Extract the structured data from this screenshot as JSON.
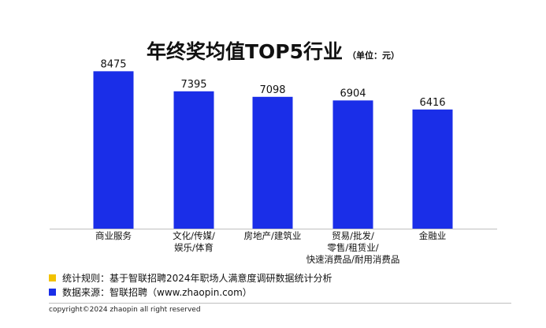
{
  "title": "年终奖均值TOP5行业",
  "unit_label": "（单位：元）",
  "chart_data": {
    "type": "bar",
    "title": "年终奖均值TOP5行业",
    "unit": "元",
    "categories": [
      [
        "商业服务"
      ],
      [
        "文化/传媒/",
        "娱乐/体育"
      ],
      [
        "房地产/建筑业"
      ],
      [
        "贸易/批发/",
        "零售/租赁业/",
        "快速消费品/耐用消费品"
      ],
      [
        "金融业"
      ]
    ],
    "values": [
      8475,
      7395,
      7098,
      6904,
      6416
    ],
    "ylim": [
      0,
      9000
    ],
    "bar_color": "#1a2ee8",
    "grid": false,
    "legend": "none"
  },
  "notes": [
    {
      "label": "统计规则：",
      "text": "基于智联招聘2024年职场人满意度调研数据统计分析",
      "color": "#f2c200"
    },
    {
      "label": "数据来源：",
      "text": "智联招聘（www.zhaopin.com）",
      "color": "#1a2ee8"
    }
  ],
  "copyright": "copyright©2024 zhaopin all right reserved"
}
